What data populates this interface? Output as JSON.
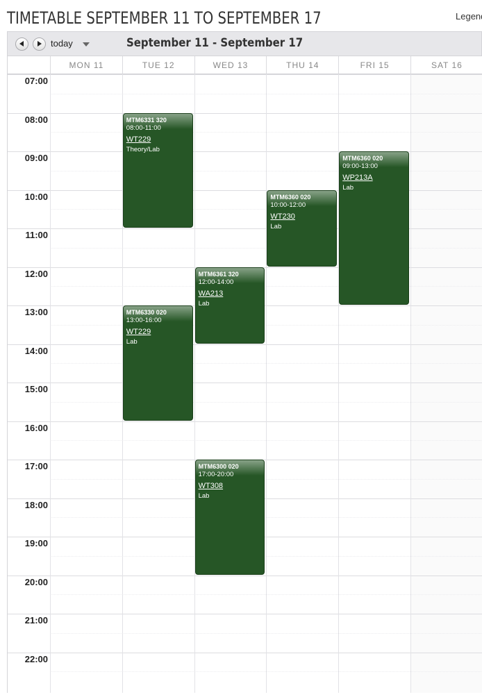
{
  "header": {
    "title": "TIMETABLE SEPTEMBER 11 TO SEPTEMBER 17",
    "legend_label": "Legend"
  },
  "toolbar": {
    "prev_icon": "chevron-left-icon",
    "next_icon": "chevron-right-icon",
    "today_label": "today",
    "dropdown_icon": "caret-down-icon",
    "range_label": "September 11 - September 17"
  },
  "days": [
    "MON 11",
    "TUE 12",
    "WED 13",
    "THU 14",
    "FRI 15",
    "SAT 16"
  ],
  "times": [
    "07:00",
    "08:00",
    "09:00",
    "10:00",
    "11:00",
    "12:00",
    "13:00",
    "14:00",
    "15:00",
    "16:00",
    "17:00",
    "18:00",
    "19:00",
    "20:00",
    "21:00",
    "22:00"
  ],
  "events": [
    {
      "code": "MTM6331 320",
      "time": "08:00-11:00",
      "room": "WT229",
      "type": "Theory/Lab",
      "day": 1,
      "start": 8,
      "end": 11
    },
    {
      "code": "MTM6360 020",
      "time": "09:00-13:00",
      "room": "WP213A",
      "type": "Lab",
      "day": 4,
      "start": 9,
      "end": 13
    },
    {
      "code": "MTM6360 020",
      "time": "10:00-12:00",
      "room": "WT230",
      "type": "Lab",
      "day": 3,
      "start": 10,
      "end": 12
    },
    {
      "code": "MTM6361 320",
      "time": "12:00-14:00",
      "room": "WA213",
      "type": "Lab",
      "day": 2,
      "start": 12,
      "end": 14
    },
    {
      "code": "MTM6330 020",
      "time": "13:00-16:00",
      "room": "WT229",
      "type": "Lab",
      "day": 1,
      "start": 13,
      "end": 16
    },
    {
      "code": "MTM6300 020",
      "time": "17:00-20:00",
      "room": "WT308",
      "type": "Lab",
      "day": 2,
      "start": 17,
      "end": 20
    }
  ],
  "colors": {
    "event_bg": "#265626",
    "event_border": "#1b3f1b",
    "toolbar_bg": "#e7e7ea"
  }
}
